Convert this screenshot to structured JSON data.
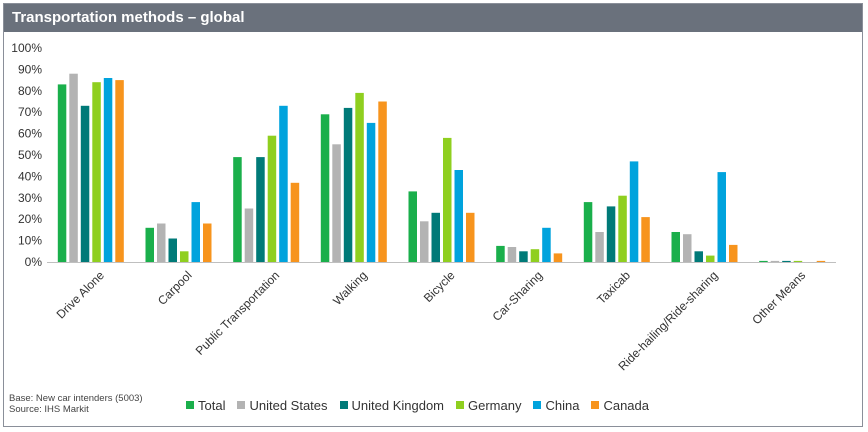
{
  "title": "Transportation methods – global",
  "footnote": {
    "base": "Base: New car intenders (5003)",
    "source": "Source: IHS Markit"
  },
  "chart_data": {
    "type": "bar",
    "title": "Transportation methods – global",
    "categories": [
      "Drive Alone",
      "Carpool",
      "Public Transportation",
      "Walking",
      "Bicycle",
      "Car-Sharing",
      "Taxicab",
      "Ride-hailing/Ride-sharing",
      "Other Means"
    ],
    "ylim": [
      0,
      100
    ],
    "yticks": [
      "0%",
      "10%",
      "20%",
      "30%",
      "40%",
      "50%",
      "60%",
      "70%",
      "80%",
      "90%",
      "100%"
    ],
    "grid": false,
    "legend_position": "bottom",
    "series": [
      {
        "name": "Total",
        "color": "#1aaf4b",
        "values": [
          83,
          16,
          49,
          69,
          33,
          7.5,
          28,
          14,
          0.5
        ]
      },
      {
        "name": "United States",
        "color": "#b3b3b3",
        "values": [
          88,
          18,
          25,
          55,
          19,
          7,
          14,
          13,
          0.5
        ]
      },
      {
        "name": "United Kingdom",
        "color": "#007a78",
        "values": [
          73,
          11,
          49,
          72,
          23,
          5,
          26,
          5,
          0.5
        ]
      },
      {
        "name": "Germany",
        "color": "#8fcf1f",
        "values": [
          84,
          5,
          59,
          79,
          58,
          6,
          31,
          3,
          0.5
        ]
      },
      {
        "name": "China",
        "color": "#00a3dd",
        "values": [
          86,
          28,
          73,
          65,
          43,
          16,
          47,
          42,
          0
        ]
      },
      {
        "name": "Canada",
        "color": "#f7941d",
        "values": [
          85,
          18,
          37,
          75,
          23,
          4,
          21,
          8,
          0.5
        ]
      }
    ]
  }
}
